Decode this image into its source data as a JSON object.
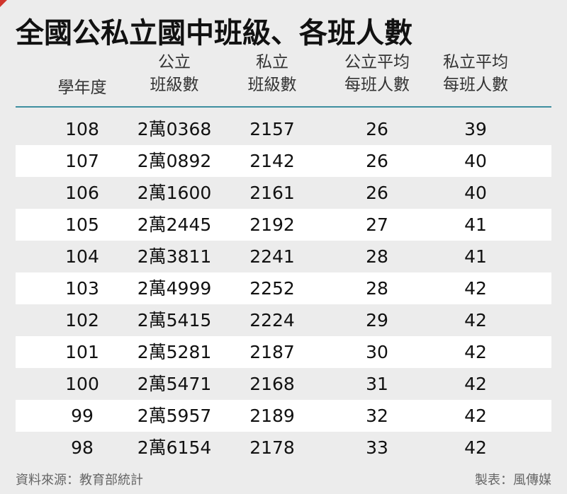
{
  "chart_data": {
    "type": "table",
    "title": "全國公私立國中班級、各班人數",
    "columns": [
      [
        "學年度"
      ],
      [
        "公立",
        "班級數"
      ],
      [
        "私立",
        "班級數"
      ],
      [
        "公立平均",
        "每班人數"
      ],
      [
        "私立平均",
        "每班人數"
      ]
    ],
    "rows": [
      [
        "108",
        "2萬0368",
        "2157",
        "26",
        "39"
      ],
      [
        "107",
        "2萬0892",
        "2142",
        "26",
        "40"
      ],
      [
        "106",
        "2萬1600",
        "2161",
        "26",
        "40"
      ],
      [
        "105",
        "2萬2445",
        "2192",
        "27",
        "41"
      ],
      [
        "104",
        "2萬3811",
        "2241",
        "28",
        "41"
      ],
      [
        "103",
        "2萬4999",
        "2252",
        "28",
        "42"
      ],
      [
        "102",
        "2萬5415",
        "2224",
        "29",
        "42"
      ],
      [
        "101",
        "2萬5281",
        "2187",
        "30",
        "42"
      ],
      [
        "100",
        "2萬5471",
        "2168",
        "31",
        "42"
      ],
      [
        "99",
        "2萬5957",
        "2189",
        "32",
        "42"
      ],
      [
        "98",
        "2萬6154",
        "2178",
        "33",
        "42"
      ]
    ],
    "source": "資料來源：教育部統計",
    "credit": "製表：風傳媒"
  },
  "colors": {
    "background": "#ececec",
    "row_alt": "#ffffff",
    "rule": "#3e8fa0",
    "corner_mark": "#d0352c"
  }
}
